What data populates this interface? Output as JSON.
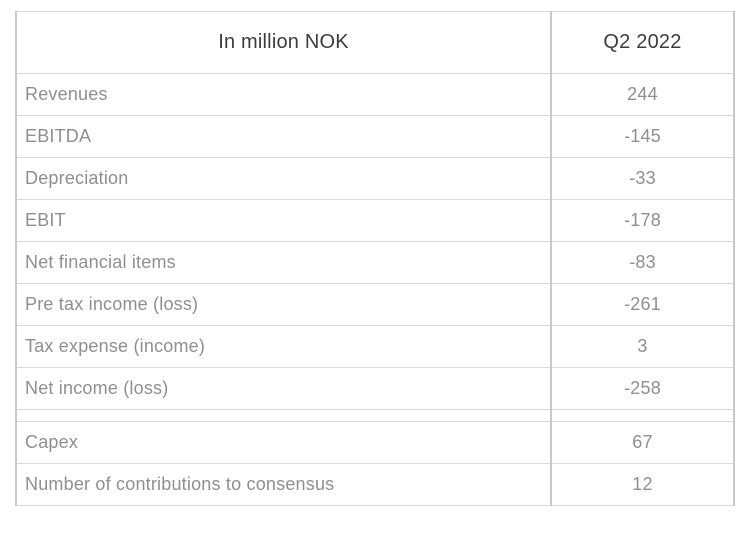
{
  "chart_data": {
    "type": "table",
    "columns": [
      "In million NOK",
      "Q2 2022"
    ],
    "rows": [
      {
        "label": "Revenues",
        "value": "244"
      },
      {
        "label": "EBITDA",
        "value": "-145"
      },
      {
        "label": "Depreciation",
        "value": "-33"
      },
      {
        "label": "EBIT",
        "value": "-178"
      },
      {
        "label": "Net financial items",
        "value": "-83"
      },
      {
        "label": "Pre tax income (loss)",
        "value": "-261"
      },
      {
        "label": "Tax expense (income)",
        "value": "3"
      },
      {
        "label": "Net income (loss)",
        "value": "-258"
      }
    ],
    "secondary_rows": [
      {
        "label": "Capex",
        "value": "67"
      },
      {
        "label": "Number of contributions to consensus",
        "value": "12"
      }
    ],
    "layout": {
      "label_alignment": "left",
      "value_alignment": "center",
      "spacer_between_groups": true,
      "grid": true
    }
  },
  "colors": {
    "header_text": "#3d3d41",
    "body_text": "#8f8f8f",
    "border_vertical": "#c9c9c9",
    "border_horizontal": "#d9d9d9",
    "background": "#ffffff"
  }
}
